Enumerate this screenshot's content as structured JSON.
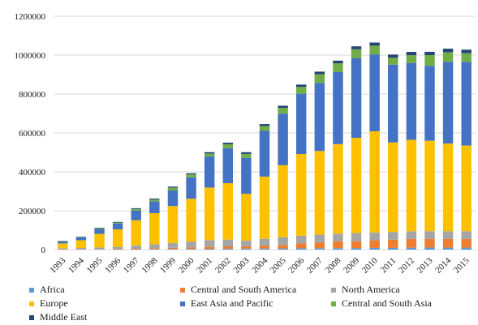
{
  "chart_data": {
    "type": "bar",
    "stacked": true,
    "title": "",
    "xlabel": "",
    "ylabel": "",
    "ylim": [
      0,
      1200000
    ],
    "yticks": [
      "0",
      "200000",
      "400000",
      "600000",
      "800000",
      "1000000",
      "1200000"
    ],
    "grid": true,
    "legend_position": "bottom",
    "categories": [
      "1993",
      "1994",
      "1995",
      "1996",
      "1997",
      "1998",
      "1999",
      "2000",
      "2001",
      "2002",
      "2003",
      "2004",
      "2005",
      "2006",
      "2007",
      "2008",
      "2009",
      "2010",
      "2011",
      "2012",
      "2013",
      "2014",
      "2015"
    ],
    "series": [
      {
        "name": "Africa",
        "color": "#5b9bd5",
        "values": [
          500,
          700,
          1000,
          1500,
          2000,
          2500,
          3000,
          3500,
          4000,
          4500,
          5000,
          5500,
          6000,
          6500,
          7000,
          7500,
          8000,
          8500,
          9000,
          9500,
          10000,
          10000,
          10000
        ]
      },
      {
        "name": "Central and South America",
        "color": "#ed7d31",
        "values": [
          1000,
          1500,
          2000,
          3000,
          4000,
          5000,
          6000,
          8000,
          10000,
          12000,
          12000,
          15000,
          18000,
          25000,
          30000,
          35000,
          35000,
          40000,
          42000,
          45000,
          45000,
          45000,
          45000
        ]
      },
      {
        "name": "North America",
        "color": "#a5a5a5",
        "values": [
          5000,
          6000,
          8000,
          10000,
          15000,
          20000,
          25000,
          30000,
          35000,
          35000,
          30000,
          35000,
          40000,
          40000,
          40000,
          40000,
          42000,
          40000,
          40000,
          40000,
          40000,
          40000,
          40000
        ]
      },
      {
        "name": "Europe",
        "color": "#ffc000",
        "values": [
          25000,
          40000,
          70000,
          90000,
          130000,
          160000,
          190000,
          220000,
          270000,
          290000,
          240000,
          320000,
          370000,
          420000,
          430000,
          460000,
          490000,
          520000,
          460000,
          470000,
          465000,
          450000,
          440000
        ]
      },
      {
        "name": "East Asia and Pacific",
        "color": "#4472c4",
        "values": [
          10000,
          15000,
          25000,
          30000,
          50000,
          60000,
          80000,
          110000,
          160000,
          180000,
          185000,
          235000,
          265000,
          310000,
          350000,
          370000,
          410000,
          395000,
          400000,
          395000,
          385000,
          420000,
          430000
        ]
      },
      {
        "name": "Central and South Asia",
        "color": "#70ad47",
        "values": [
          2000,
          2000,
          4000,
          5000,
          8000,
          10000,
          15000,
          15000,
          15000,
          20000,
          20000,
          25000,
          30000,
          35000,
          45000,
          45000,
          45000,
          45000,
          35000,
          40000,
          55000,
          50000,
          45000
        ]
      },
      {
        "name": "Middle East",
        "color": "#264478",
        "values": [
          1500,
          1800,
          2500,
          3000,
          4000,
          5000,
          5000,
          6000,
          7000,
          8000,
          9000,
          10000,
          11000,
          12000,
          13000,
          14000,
          15000,
          16000,
          17000,
          17000,
          17000,
          18000,
          18000
        ]
      }
    ]
  }
}
